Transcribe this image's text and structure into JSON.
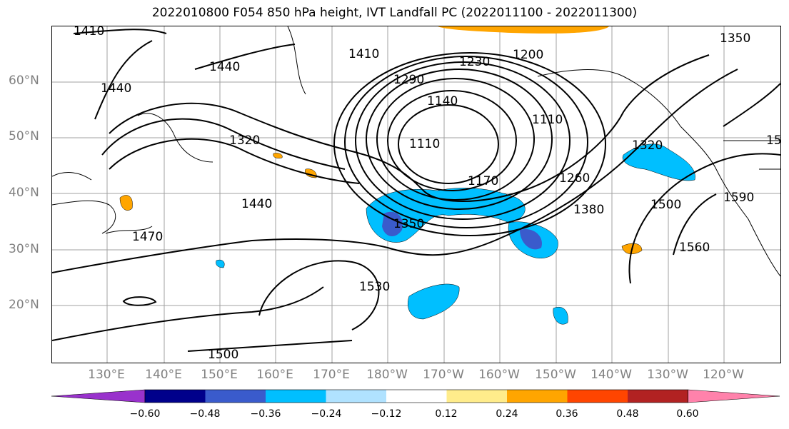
{
  "title": "2022010800 F054 850 hPa height, IVT Landfall PC (2022011100 - 2022011300)",
  "lat_labels": [
    "60°N",
    "50°N",
    "40°N",
    "30°N",
    "20°N"
  ],
  "lon_labels": [
    "130°E",
    "140°E",
    "150°E",
    "160°E",
    "170°E",
    "180°W",
    "170°W",
    "160°W",
    "150°W",
    "140°W",
    "130°W",
    "120°W"
  ],
  "contour_labels": [
    "1410",
    "1440",
    "1440",
    "1410",
    "1290",
    "1230",
    "1200",
    "1350",
    "1140",
    "1110",
    "1110",
    "1320",
    "1320",
    "1260",
    "1170",
    "1380",
    "1440",
    "1350",
    "1500",
    "1590",
    "1470",
    "1560",
    "1530",
    "1500",
    "15"
  ],
  "colorbar": {
    "tick_labels": [
      "−0.60",
      "−0.48",
      "−0.36",
      "−0.24",
      "−0.12",
      "0.12",
      "0.24",
      "0.36",
      "0.48",
      "0.60"
    ],
    "colors": [
      "#9932cc",
      "#00008b",
      "#3a5bcc",
      "#00bfff",
      "#b0e2ff",
      "#ffffff",
      "#ffec8b",
      "#ffa500",
      "#ff4500",
      "#b22222",
      "#ff82ab"
    ]
  },
  "shading_colors": {
    "light_blue": "#00bfff",
    "mid_blue": "#3a5bcc",
    "orange": "#ffa500",
    "yellow": "#ffec8b"
  }
}
